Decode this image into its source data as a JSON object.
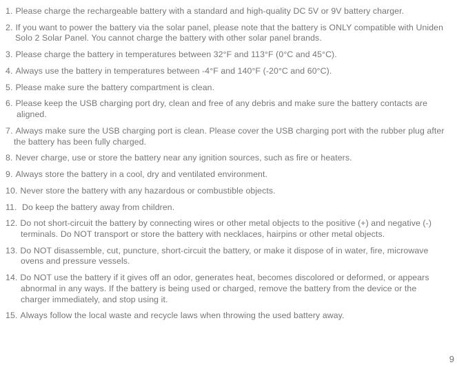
{
  "text_color": "#757575",
  "background_color": "#ffffff",
  "font_size_pt": 9,
  "page_number": "9",
  "items": [
    {
      "n": "1.",
      "pad": "14px",
      "text": "Please charge the rechargeable battery with a standard and high-quality DC 5V or 9V battery charger."
    },
    {
      "n": "2.",
      "pad": "14px",
      "text": "If you want to power the battery via the solar panel, please note that the battery is ONLY compatible with Uniden Solo 2 Solar Panel. You cannot charge the battery with other solar panel brands."
    },
    {
      "n": "3.",
      "pad": "14px",
      "text": "Please charge the battery in temperatures between 32°F and 113°F (0°C and 45°C)."
    },
    {
      "n": "4.",
      "pad": "14px",
      "text": "Always use the battery in temperatures between -4°F and 140°F  (-20°C and 60°C)."
    },
    {
      "n": "5.",
      "pad": "14px",
      "text": "Please make sure the battery compartment is clean."
    },
    {
      "n": "6.",
      "pad": "16px",
      "text": "Please keep the USB charging port dry, clean and free of any debris and make sure the battery contacts are aligned."
    },
    {
      "n": "7.",
      "pad": "12px",
      "text": "Always make sure the USB charging  port is clean. Please cover the USB charging port with the rubber plug after the battery has been fully charged."
    },
    {
      "n": "8.",
      "pad": "16px",
      "text": "Never charge, use or store the battery near any ignition sources, such as fire or heaters."
    },
    {
      "n": "9.",
      "pad": "16px",
      "text": "Always store the battery in a cool, dry and ventilated environment."
    },
    {
      "n": "10.",
      "pad": "22px",
      "text": "Never store the battery with any hazardous or combustible objects."
    },
    {
      "n": "11.",
      "pad": "18px",
      "text": " Do keep the battery away from children."
    },
    {
      "n": "12.",
      "pad": "22px",
      "text": "Do not  short-circuit the battery by connecting wires or other metal objects to the positive (+) and negative (-) terminals. Do NOT transport or store the battery with necklaces, hairpins or other metal objects."
    },
    {
      "n": "13.",
      "pad": "22px",
      "text": "Do NOT disassemble, cut, puncture, short-circuit the battery, or make it dispose of in water, fire, microwave ovens and pressure vessels."
    },
    {
      "n": "14.",
      "pad": "22px",
      "text": "Do NOT use the battery if it gives off an odor, generates heat, becomes discolored or deformed, or appears abnormal in any ways. If the battery is being used or charged, remove the battery from the device or the charger immediately, and stop using it."
    },
    {
      "n": "15.",
      "pad": "22px",
      "text": "Always follow the local waste and recycle laws when throwing the used battery away."
    }
  ]
}
